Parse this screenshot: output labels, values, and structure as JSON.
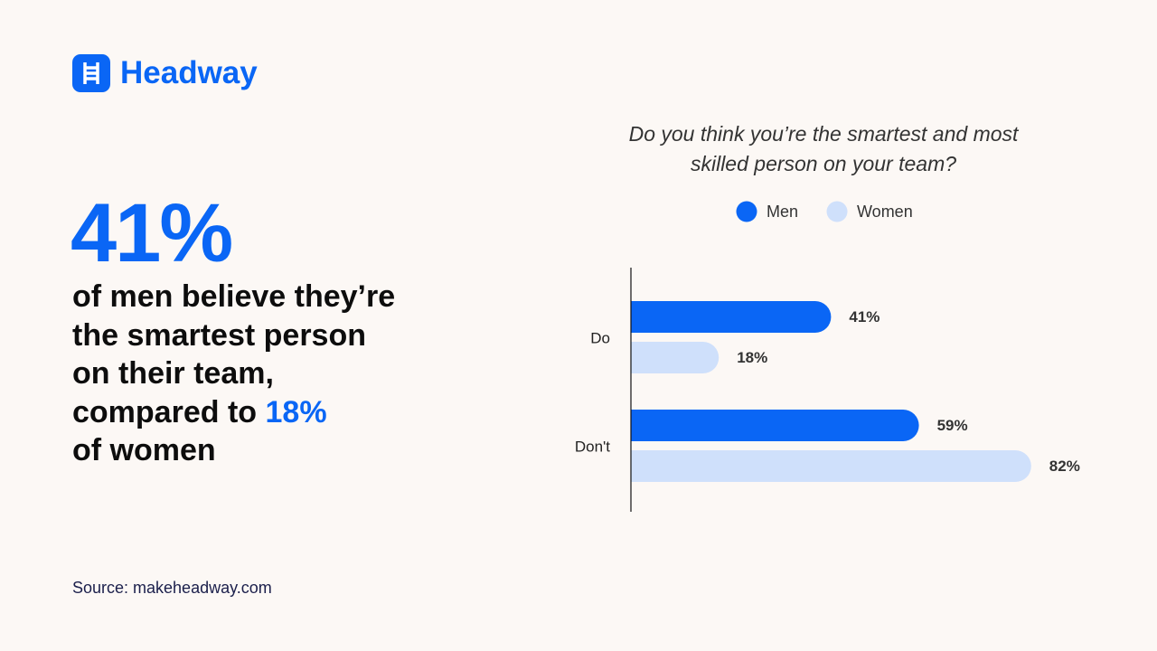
{
  "brand": "Headway",
  "headline": {
    "stat": "41%",
    "lines": [
      "of men believe they’re",
      "the smartest person",
      "on their team,"
    ],
    "before_highlight": "compared to",
    "highlight": "18%",
    "after": "of women"
  },
  "source": "Source: makeheadway.com",
  "chart_data": {
    "type": "hbar",
    "title": "Do you think you’re the smartest and most skilled person on your team?",
    "categories": [
      "Do",
      "Don't"
    ],
    "series": [
      {
        "name": "Men",
        "color": "#0a66f5",
        "values": [
          41,
          59
        ],
        "value_labels": [
          "41%",
          "59%"
        ]
      },
      {
        "name": "Women",
        "color": "#cfe0fb",
        "values": [
          18,
          82
        ],
        "value_labels": [
          "18%",
          "82%"
        ]
      }
    ],
    "xlim": [
      0,
      100
    ]
  }
}
